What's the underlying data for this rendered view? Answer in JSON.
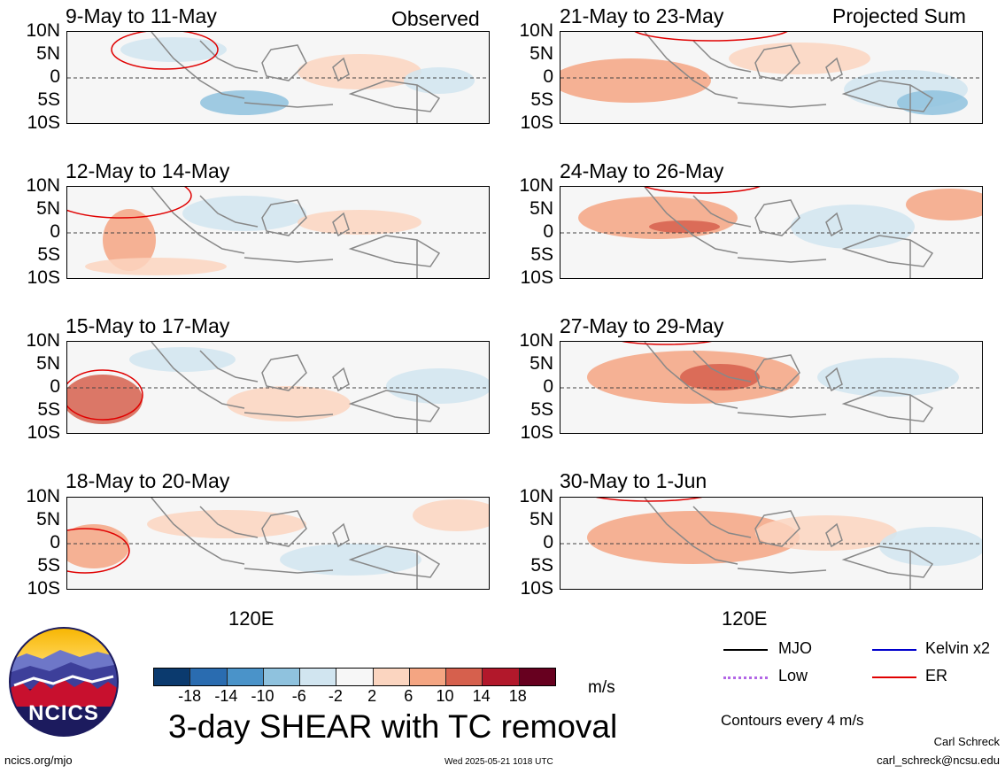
{
  "panels_left": [
    {
      "title": "9-May to 11-May",
      "tag": "Observed"
    },
    {
      "title": "12-May to 14-May",
      "tag": ""
    },
    {
      "title": "15-May to 17-May",
      "tag": ""
    },
    {
      "title": "18-May to 20-May",
      "tag": ""
    }
  ],
  "panels_right": [
    {
      "title": "21-May to 23-May",
      "tag": "Projected Sum"
    },
    {
      "title": "24-May to 26-May",
      "tag": ""
    },
    {
      "title": "27-May to 29-May",
      "tag": ""
    },
    {
      "title": "30-May to 1-Jun",
      "tag": ""
    }
  ],
  "lat_labels": [
    "10N",
    "5N",
    "0",
    "5S",
    "10S"
  ],
  "x_tick_label": "120E",
  "colorbar": {
    "colors": [
      "#0b3a6e",
      "#2a6cb0",
      "#4a93c9",
      "#8fc2de",
      "#d1e5f0",
      "#f7f7f7",
      "#fbd5c0",
      "#f4a582",
      "#d6604d",
      "#b2182b",
      "#67001f"
    ],
    "labels": [
      "-18",
      "-14",
      "-10",
      "-6",
      "-2",
      "2",
      "6",
      "10",
      "14",
      "18"
    ],
    "units": "m/s"
  },
  "title": "3-day SHEAR with TC removal",
  "logo_text": "NCICS",
  "url": "ncics.org/mjo",
  "timestamp": "Wed 2025-05-21 1018 UTC",
  "legend": {
    "items": [
      {
        "label": "MJO",
        "color": "#000000"
      },
      {
        "label": "Kelvin x2",
        "color": "#0000cc"
      },
      {
        "label": "Low",
        "color": "#b266e6"
      },
      {
        "label": "ER",
        "color": "#e00000"
      }
    ],
    "contours_note": "Contours every 4 m/s"
  },
  "author": {
    "name": "Carl Schreck",
    "email": "carl_schreck@ncsu.edu"
  },
  "colors": {
    "land": "#888888",
    "er_contour": "#e00000"
  }
}
